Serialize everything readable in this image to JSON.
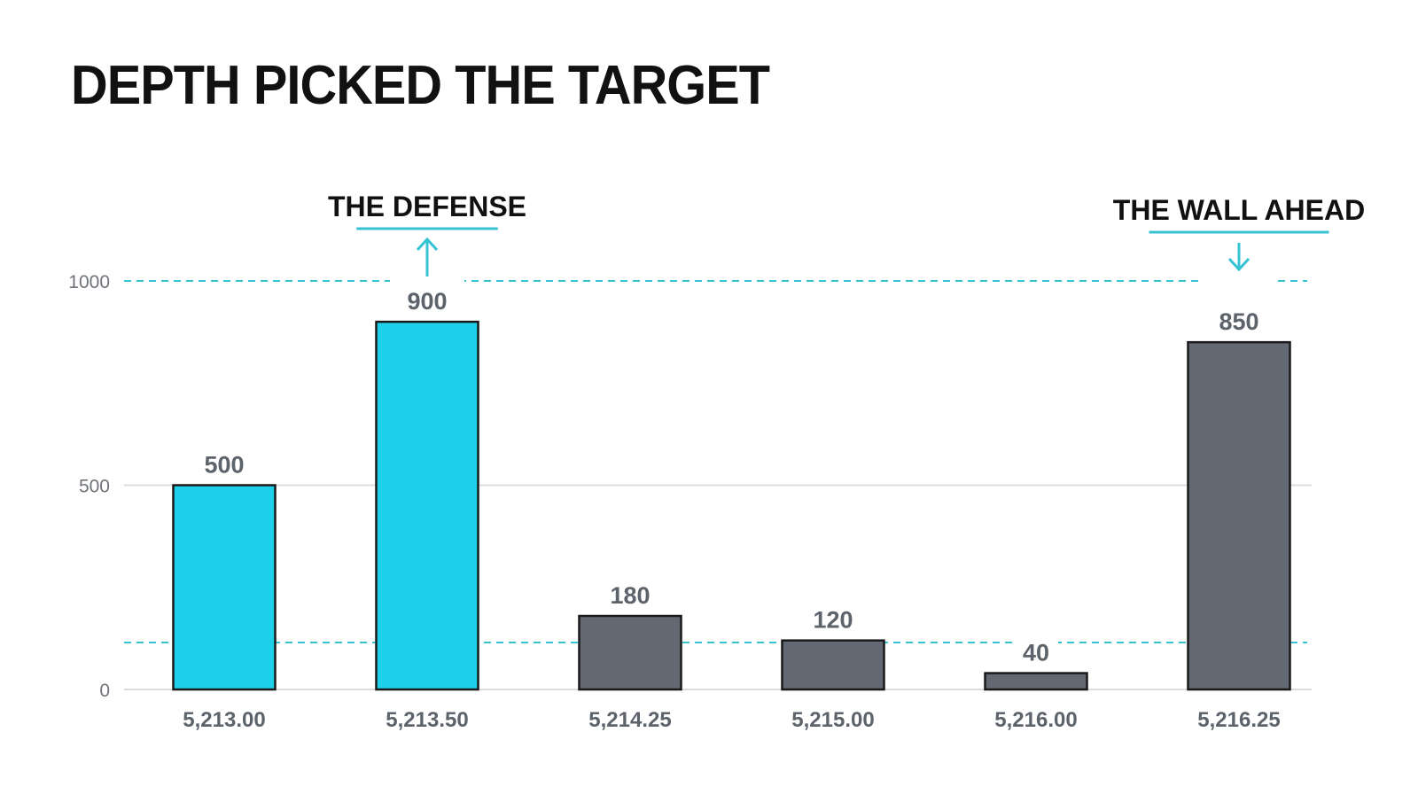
{
  "title": "DEPTH PICKED THE TARGET",
  "colors": {
    "highlight": "#1fd0ea",
    "neutral": "#636973",
    "guide": "#35c3d4",
    "grid": "#dcdcdc",
    "text": "#111111"
  },
  "chart_data": {
    "type": "bar",
    "title": "DEPTH PICKED THE TARGET",
    "categories": [
      "5,213.00",
      "5,213.50",
      "5,214.25",
      "5,215.00",
      "5,216.00",
      "5,216.25"
    ],
    "values": [
      500,
      900,
      180,
      120,
      40,
      850
    ],
    "bar_colors": [
      "highlight",
      "highlight",
      "neutral",
      "neutral",
      "neutral",
      "neutral"
    ],
    "y_ticks": [
      0,
      500,
      1000
    ],
    "y_tick_labels": [
      "0",
      "500",
      "1000"
    ],
    "ylim": [
      0,
      1000
    ],
    "xlabel": "",
    "ylabel": "",
    "grid": true,
    "reference_lines": [
      {
        "value": 1000,
        "style": "dashed"
      },
      {
        "value": 115,
        "style": "dashed"
      }
    ],
    "annotations": [
      {
        "text": "THE DEFENSE",
        "category_index": 1,
        "arrow": "up"
      },
      {
        "text": "THE WALL AHEAD",
        "category_index": 5,
        "arrow": "down"
      }
    ]
  }
}
